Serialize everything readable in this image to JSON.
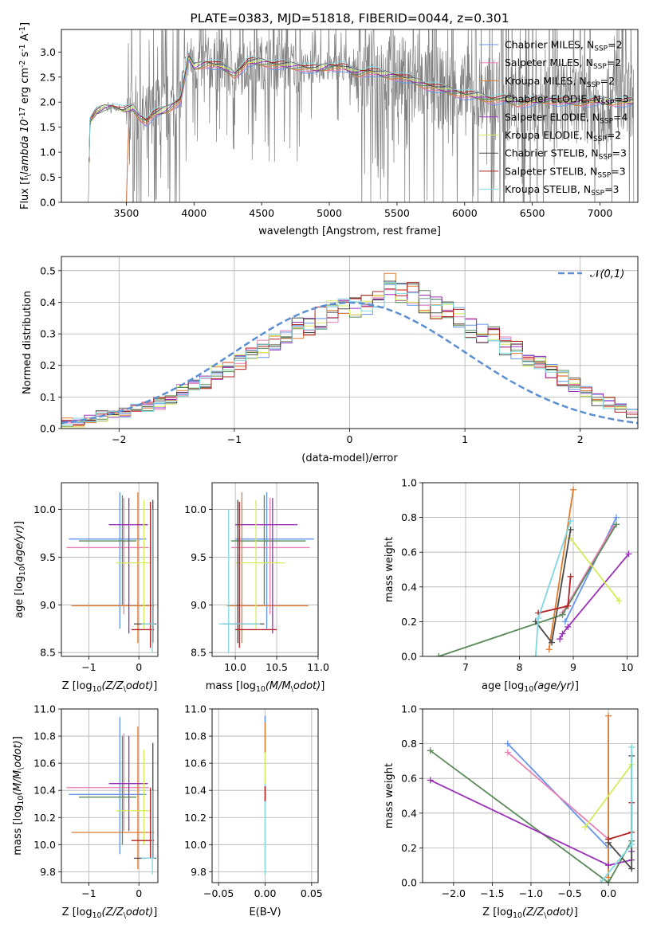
{
  "colors": {
    "Chabrier MILES": "#6495ed",
    "Salpeter MILES": "#e87fb5",
    "Kroupa MILES": "#e07b2e",
    "Chabrier ELODIE": "#5a8a5a",
    "Salpeter ELODIE": "#9b30b8",
    "Kroupa ELODIE": "#d4eb5a",
    "Chabrier STELIB": "#4a4a4a",
    "Salpeter STELIB": "#b22222",
    "Kroupa STELIB": "#7fd8e0",
    "data": "#808080",
    "normal": "#5b8fd1"
  },
  "chart_data": [
    {
      "type": "line",
      "title": "PLATE=0383, MJD=51818, FIBERID=0044, z=0.301",
      "xlabel": "wavelength [Angstrom, rest frame]",
      "ylabel": "Flux [f$_\\lambda 10^{-17}$ erg cm$^{-2}$ s$^{-1}$ A$^{-1}$]",
      "xlim": [
        3020,
        7280
      ],
      "ylim": [
        0,
        3.45
      ],
      "xticks": [
        3500,
        4000,
        4500,
        5000,
        5500,
        6000,
        6500,
        7000
      ],
      "yticks": [
        0.0,
        0.5,
        1.0,
        1.5,
        2.0,
        2.5,
        3.0
      ],
      "legend": "upper right",
      "series": [
        {
          "name": "Chabrier MILES, N$_{SSP}$=2"
        },
        {
          "name": "Salpeter MILES, N$_{SSP}$=2"
        },
        {
          "name": "Kroupa MILES, N$_{SSP}$=2"
        },
        {
          "name": "Chabrier ELODIE, N$_{SSP}$=3"
        },
        {
          "name": "Salpeter ELODIE, N$_{SSP}$=4"
        },
        {
          "name": "Kroupa ELODIE, N$_{SSP}$=2"
        },
        {
          "name": "Chabrier STELIB, N$_{SSP}$=3"
        },
        {
          "name": "Salpeter STELIB, N$_{SSP}$=3"
        },
        {
          "name": "Kroupa STELIB, N$_{SSP}$=3"
        }
      ],
      "continuum": [
        [
          3220,
          0
        ],
        [
          3230,
          1.58
        ],
        [
          3280,
          1.8
        ],
        [
          3340,
          1.88
        ],
        [
          3400,
          1.9
        ],
        [
          3480,
          1.82
        ],
        [
          3550,
          1.88
        ],
        [
          3600,
          1.7
        ],
        [
          3650,
          1.62
        ],
        [
          3700,
          1.75
        ],
        [
          3800,
          1.85
        ],
        [
          3900,
          2.05
        ],
        [
          3960,
          2.9
        ],
        [
          4000,
          2.7
        ],
        [
          4100,
          2.78
        ],
        [
          4200,
          2.72
        ],
        [
          4300,
          2.55
        ],
        [
          4400,
          2.8
        ],
        [
          4500,
          2.8
        ],
        [
          4600,
          2.75
        ],
        [
          4700,
          2.73
        ],
        [
          4800,
          2.7
        ],
        [
          4900,
          2.65
        ],
        [
          5000,
          2.72
        ],
        [
          5100,
          2.7
        ],
        [
          5200,
          2.58
        ],
        [
          5300,
          2.62
        ],
        [
          5400,
          2.55
        ],
        [
          5500,
          2.52
        ],
        [
          5600,
          2.45
        ],
        [
          5700,
          2.35
        ],
        [
          5800,
          2.28
        ],
        [
          5900,
          2.22
        ],
        [
          6000,
          2.15
        ],
        [
          6100,
          2.12
        ],
        [
          6200,
          2.05
        ],
        [
          6300,
          2.05
        ],
        [
          6400,
          1.98
        ],
        [
          6600,
          2.05
        ],
        [
          6800,
          2.0
        ],
        [
          7000,
          2.02
        ],
        [
          7200,
          2.0
        ]
      ]
    },
    {
      "type": "bar",
      "xlabel": "(data-model)/error",
      "ylabel": "Normed distribution",
      "xlim": [
        -2.5,
        2.5
      ],
      "ylim": [
        0,
        0.545
      ],
      "xticks": [
        -2,
        -1,
        0,
        1,
        2
      ],
      "yticks": [
        0.0,
        0.1,
        0.2,
        0.3,
        0.4,
        0.5
      ],
      "legend": "upper right",
      "reference_label": "$\\mathcal{N}(0,1)$",
      "bin_edges_start": -2.5,
      "bin_width": 0.1,
      "histograms": [
        [
          0.02,
          0.02,
          0.03,
          0.04,
          0.04,
          0.05,
          0.06,
          0.07,
          0.08,
          0.09,
          0.12,
          0.14,
          0.15,
          0.18,
          0.19,
          0.21,
          0.23,
          0.25,
          0.27,
          0.29,
          0.32,
          0.33,
          0.35,
          0.37,
          0.38,
          0.39,
          0.4,
          0.41,
          0.45,
          0.44,
          0.43,
          0.4,
          0.38,
          0.37,
          0.35,
          0.32,
          0.3,
          0.29,
          0.26,
          0.25,
          0.22,
          0.21,
          0.18,
          0.16,
          0.14,
          0.12,
          0.09,
          0.08,
          0.06,
          0.05
        ]
      ]
    },
    {
      "type": "scatter",
      "xlabel": "Z [$\\log_{10}(Z/Z_\\odot)$]",
      "ylabel": "age  [$\\log_{10}(age/yr)$]",
      "xlim": [
        -1.55,
        0.38
      ],
      "ylim": [
        8.46,
        10.28
      ],
      "xticks": [
        -1,
        0
      ],
      "yticks": [
        8.5,
        9.0,
        9.5,
        10.0
      ],
      "crosses": [
        {
          "series": "Chabrier MILES",
          "x": [
            -1.4,
            0.15
          ],
          "y": [
            8.75,
            10.18
          ],
          "cx": -0.38,
          "cy": 9.69
        },
        {
          "series": "Salpeter MILES",
          "x": [
            -1.45,
            0.2
          ],
          "y": [
            8.9,
            10.12
          ],
          "cx": -0.3,
          "cy": 9.6
        },
        {
          "series": "Kroupa MILES",
          "x": [
            -1.35,
            0.3
          ],
          "y": [
            8.6,
            10.18
          ],
          "cx": -0.02,
          "cy": 8.99
        },
        {
          "series": "Chabrier ELODIE",
          "x": [
            -1.2,
            -0.05
          ],
          "y": [
            9.0,
            10.15
          ],
          "cx": -0.33,
          "cy": 9.67
        },
        {
          "series": "Salpeter ELODIE",
          "x": [
            -0.6,
            0.18
          ],
          "y": [
            8.7,
            10.12
          ],
          "cx": -0.2,
          "cy": 9.84
        },
        {
          "series": "Kroupa ELODIE",
          "x": [
            -0.45,
            0.25
          ],
          "y": [
            8.75,
            10.1
          ],
          "cx": 0.1,
          "cy": 9.44
        },
        {
          "series": "Chabrier STELIB",
          "x": [
            -0.1,
            0.35
          ],
          "y": [
            8.6,
            10.1
          ],
          "cx": 0.28,
          "cy": 8.8
        },
        {
          "series": "Salpeter STELIB",
          "x": [
            -0.15,
            0.3
          ],
          "y": [
            8.55,
            10.08
          ],
          "cx": 0.23,
          "cy": 8.74
        },
        {
          "series": "Kroupa STELIB",
          "x": [
            0.05,
            0.32
          ],
          "y": [
            8.5,
            10.0
          ],
          "cx": 0.27,
          "cy": 8.8
        }
      ]
    },
    {
      "type": "scatter",
      "xlabel": "mass [$\\log_{10}(M/M_\\odot)$]",
      "xlim": [
        9.72,
        11.0
      ],
      "ylim": [
        8.46,
        10.28
      ],
      "xticks": [
        10.0,
        10.5,
        11.0
      ],
      "yticks": [
        8.5,
        9.0,
        9.5,
        10.0
      ],
      "crosses": [
        {
          "series": "Chabrier MILES",
          "x": [
            10.0,
            10.95
          ],
          "y": [
            8.75,
            10.18
          ],
          "cx": 10.38,
          "cy": 9.69
        },
        {
          "series": "Salpeter MILES",
          "x": [
            9.95,
            10.9
          ],
          "y": [
            8.9,
            10.12
          ],
          "cx": 10.42,
          "cy": 9.6
        },
        {
          "series": "Kroupa MILES",
          "x": [
            9.9,
            10.88
          ],
          "y": [
            8.6,
            10.18
          ],
          "cx": 10.08,
          "cy": 8.99
        },
        {
          "series": "Chabrier ELODIE",
          "x": [
            9.95,
            10.85
          ],
          "y": [
            9.0,
            10.15
          ],
          "cx": 10.35,
          "cy": 9.67
        },
        {
          "series": "Salpeter ELODIE",
          "x": [
            10.0,
            10.75
          ],
          "y": [
            8.7,
            10.12
          ],
          "cx": 10.45,
          "cy": 9.84
        },
        {
          "series": "Kroupa ELODIE",
          "x": [
            10.0,
            10.6
          ],
          "y": [
            8.75,
            10.1
          ],
          "cx": 10.25,
          "cy": 9.44
        },
        {
          "series": "Chabrier STELIB",
          "x": [
            9.85,
            10.35
          ],
          "y": [
            8.6,
            10.1
          ],
          "cx": 10.03,
          "cy": 8.8
        },
        {
          "series": "Salpeter STELIB",
          "x": [
            10.0,
            10.5
          ],
          "y": [
            8.55,
            10.08
          ],
          "cx": 10.05,
          "cy": 8.74
        },
        {
          "series": "Kroupa STELIB",
          "x": [
            9.8,
            10.3
          ],
          "y": [
            8.5,
            10.0
          ],
          "cx": 9.92,
          "cy": 8.8
        }
      ]
    },
    {
      "type": "line",
      "xlabel": "age  [$\\log_{10}(age/yr)$]",
      "ylabel": "mass weight",
      "xlim": [
        6.2,
        10.2
      ],
      "ylim": [
        0,
        1.0
      ],
      "xticks": [
        7,
        8,
        9,
        10
      ],
      "yticks": [
        0.0,
        0.2,
        0.4,
        0.6,
        0.8,
        1.0
      ],
      "series": [
        {
          "series": "Chabrier MILES",
          "x": [
            8.85,
            9.8
          ],
          "y": [
            0.2,
            0.8
          ]
        },
        {
          "series": "Salpeter MILES",
          "x": [
            8.8,
            9.75
          ],
          "y": [
            0.25,
            0.75
          ]
        },
        {
          "series": "Kroupa MILES",
          "x": [
            8.55,
            9.0
          ],
          "y": [
            0.04,
            0.96
          ]
        },
        {
          "series": "Chabrier ELODIE",
          "x": [
            6.5,
            8.8,
            9.8
          ],
          "y": [
            0.0,
            0.24,
            0.76
          ]
        },
        {
          "series": "Salpeter ELODIE",
          "x": [
            8.75,
            8.8,
            8.9,
            10.03
          ],
          "y": [
            0.1,
            0.13,
            0.17,
            0.59
          ]
        },
        {
          "series": "Kroupa ELODIE",
          "x": [
            8.95,
            9.85
          ],
          "y": [
            0.68,
            0.32
          ]
        },
        {
          "series": "Chabrier STELIB",
          "x": [
            8.3,
            8.6,
            8.95
          ],
          "y": [
            0.2,
            0.08,
            0.73
          ]
        },
        {
          "series": "Salpeter STELIB",
          "x": [
            8.35,
            8.9,
            8.95
          ],
          "y": [
            0.25,
            0.29,
            0.46
          ]
        },
        {
          "series": "Kroupa STELIB",
          "x": [
            8.3,
            8.35,
            8.95
          ],
          "y": [
            0.0,
            0.22,
            0.78
          ]
        }
      ]
    },
    {
      "type": "scatter",
      "xlabel": "Z [$\\log_{10}(Z/Z_\\odot)$]",
      "ylabel": "mass [$\\log_{10}(M/M_\\odot)$]",
      "xlim": [
        -1.55,
        0.38
      ],
      "ylim": [
        9.72,
        11.0
      ],
      "xticks": [
        -1,
        0
      ],
      "yticks": [
        9.8,
        10.0,
        10.2,
        10.4,
        10.6,
        10.8,
        11.0
      ],
      "crosses": [
        {
          "series": "Chabrier MILES",
          "x": [
            -1.4,
            0.15
          ],
          "y": [
            9.93,
            10.94
          ],
          "cx": -0.38,
          "cy": 10.37
        },
        {
          "series": "Salpeter MILES",
          "x": [
            -1.45,
            0.2
          ],
          "y": [
            10.1,
            10.82
          ],
          "cx": -0.3,
          "cy": 10.42
        },
        {
          "series": "Kroupa MILES",
          "x": [
            -1.35,
            0.3
          ],
          "y": [
            9.82,
            10.87
          ],
          "cx": -0.02,
          "cy": 10.09
        },
        {
          "series": "Chabrier ELODIE",
          "x": [
            -1.2,
            -0.05
          ],
          "y": [
            10.0,
            10.8
          ],
          "cx": -0.33,
          "cy": 10.35
        },
        {
          "series": "Salpeter ELODIE",
          "x": [
            -0.6,
            0.18
          ],
          "y": [
            10.1,
            10.8
          ],
          "cx": -0.2,
          "cy": 10.45
        },
        {
          "series": "Kroupa ELODIE",
          "x": [
            -0.45,
            0.25
          ],
          "y": [
            10.0,
            10.7
          ],
          "cx": 0.1,
          "cy": 10.25
        },
        {
          "series": "Chabrier STELIB",
          "x": [
            -0.1,
            0.35
          ],
          "y": [
            9.9,
            10.75
          ],
          "cx": 0.28,
          "cy": 9.9
        },
        {
          "series": "Salpeter STELIB",
          "x": [
            -0.15,
            0.3
          ],
          "y": [
            9.9,
            10.42
          ],
          "cx": 0.23,
          "cy": 10.03
        },
        {
          "series": "Kroupa STELIB",
          "x": [
            0.05,
            0.32
          ],
          "y": [
            9.78,
            10.4
          ],
          "cx": 0.27,
          "cy": 9.9
        }
      ]
    },
    {
      "type": "scatter",
      "xlabel": "E(B-V)",
      "xlim": [
        -0.057,
        0.057
      ],
      "ylim": [
        9.72,
        11.0
      ],
      "xticks": [
        -0.05,
        0.0,
        0.05
      ],
      "yticks": [
        9.8,
        10.0,
        10.2,
        10.4,
        10.6,
        10.8,
        11.0
      ],
      "stack": [
        {
          "series": "Kroupa STELIB",
          "y": [
            9.78,
            10.45
          ]
        },
        {
          "series": "Kroupa ELODIE",
          "y": [
            10.45,
            10.68
          ]
        },
        {
          "series": "Kroupa MILES",
          "y": [
            10.68,
            10.9
          ]
        },
        {
          "series": "Chabrier MILES",
          "y": [
            10.9,
            10.95
          ]
        },
        {
          "series": "Salpeter STELIB",
          "y": [
            10.32,
            10.43
          ]
        }
      ]
    },
    {
      "type": "line",
      "xlabel": "Z [$\\log_{10}(Z/Z_\\odot)$]",
      "ylabel": "mass weight",
      "xlim": [
        -2.4,
        0.38
      ],
      "ylim": [
        0,
        1.0
      ],
      "xticks": [
        -2.0,
        -1.5,
        -1.0,
        -0.5,
        0.0
      ],
      "yticks": [
        0.0,
        0.2,
        0.4,
        0.6,
        0.8,
        1.0
      ],
      "series": [
        {
          "series": "Chabrier MILES",
          "x": [
            -1.3,
            0.0
          ],
          "y": [
            0.8,
            0.2
          ]
        },
        {
          "series": "Salpeter MILES",
          "x": [
            -1.3,
            0.0
          ],
          "y": [
            0.75,
            0.25
          ]
        },
        {
          "series": "Kroupa MILES",
          "x": [
            0.0,
            0.0
          ],
          "y": [
            0.03,
            0.96
          ]
        },
        {
          "series": "Chabrier ELODIE",
          "x": [
            -2.3,
            0.0,
            0.3
          ],
          "y": [
            0.76,
            0.0,
            0.24
          ]
        },
        {
          "series": "Salpeter ELODIE",
          "x": [
            -2.3,
            0.0,
            0.3,
            0.3
          ],
          "y": [
            0.59,
            0.1,
            0.13,
            0.18
          ]
        },
        {
          "series": "Kroupa ELODIE",
          "x": [
            -0.3,
            0.3
          ],
          "y": [
            0.32,
            0.68
          ]
        },
        {
          "series": "Chabrier STELIB",
          "x": [
            0.0,
            0.3,
            0.3
          ],
          "y": [
            0.23,
            0.08,
            0.73
          ]
        },
        {
          "series": "Salpeter STELIB",
          "x": [
            0.0,
            0.3,
            0.3
          ],
          "y": [
            0.25,
            0.29,
            0.46
          ]
        },
        {
          "series": "Kroupa STELIB",
          "x": [
            -0.1,
            0.3,
            0.3
          ],
          "y": [
            0.0,
            0.22,
            0.78
          ]
        }
      ]
    }
  ]
}
